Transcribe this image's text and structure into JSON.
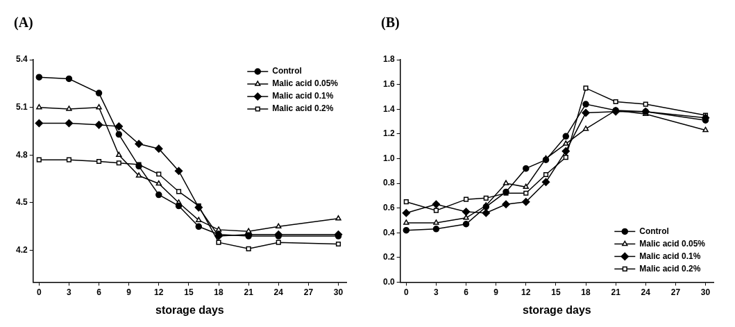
{
  "chart_data": [
    {
      "type": "line",
      "title": "(A)",
      "x_label": "storage days",
      "x": [
        0,
        3,
        6,
        8,
        10,
        12,
        14,
        16,
        18,
        21,
        24,
        30
      ],
      "xlim": [
        -0.6,
        30.8
      ],
      "xticks": [
        0,
        3,
        6,
        9,
        12,
        15,
        18,
        21,
        24,
        27,
        30
      ],
      "ylim": [
        4.0,
        5.4
      ],
      "yticks": [
        4.2,
        4.5,
        4.8,
        5.1,
        5.4
      ],
      "grid": false,
      "legend": "top-right",
      "series": [
        {
          "name": "Control",
          "color": "#000000",
          "marker": "circle",
          "values": [
            5.29,
            5.28,
            5.19,
            4.93,
            4.73,
            4.55,
            4.48,
            4.35,
            4.3,
            4.29,
            4.29,
            4.29
          ]
        },
        {
          "name": "Malic acid 0.05%",
          "color": "#000000",
          "marker": "triangle-open",
          "values": [
            5.1,
            5.09,
            5.1,
            4.8,
            4.67,
            4.62,
            4.5,
            4.39,
            4.33,
            4.32,
            4.35,
            4.4
          ]
        },
        {
          "name": "Malic acid 0.1%",
          "color": "#000000",
          "marker": "diamond",
          "values": [
            5.0,
            5.0,
            4.99,
            4.98,
            4.87,
            4.84,
            4.7,
            4.47,
            4.29,
            4.3,
            4.3,
            4.3
          ]
        },
        {
          "name": "Malic acid 0.2%",
          "color": "#000000",
          "marker": "square-open",
          "values": [
            4.77,
            4.77,
            4.76,
            4.75,
            4.74,
            4.68,
            4.57,
            4.48,
            4.25,
            4.21,
            4.25,
            4.24
          ]
        }
      ]
    },
    {
      "type": "line",
      "title": "(B)",
      "x_label": "storage days",
      "x": [
        0,
        3,
        6,
        8,
        10,
        12,
        14,
        16,
        18,
        21,
        24,
        30
      ],
      "xlim": [
        -0.6,
        30.8
      ],
      "xticks": [
        0,
        3,
        6,
        9,
        12,
        15,
        18,
        21,
        24,
        27,
        30
      ],
      "ylim": [
        0,
        1.8
      ],
      "yticks": [
        {
          "value": 0,
          "label": "0.0"
        },
        0.2,
        0.4,
        0.6,
        0.8,
        {
          "value": 1,
          "label": "1.0"
        },
        1.2,
        1.4,
        1.6,
        1.8
      ],
      "grid": false,
      "legend": "bottom-right",
      "series": [
        {
          "name": "Control",
          "color": "#000000",
          "marker": "circle",
          "values": [
            0.42,
            0.43,
            0.47,
            0.61,
            0.73,
            0.92,
            0.99,
            1.18,
            1.44,
            1.39,
            1.38,
            1.31
          ]
        },
        {
          "name": "Malic acid 0.05%",
          "color": "#000000",
          "marker": "triangle-open",
          "values": [
            0.48,
            0.48,
            0.52,
            0.62,
            0.8,
            0.77,
            1.0,
            1.12,
            1.24,
            1.39,
            1.36,
            1.23
          ]
        },
        {
          "name": "Malic acid 0.1%",
          "color": "#000000",
          "marker": "diamond",
          "values": [
            0.56,
            0.63,
            0.57,
            0.56,
            0.63,
            0.65,
            0.81,
            1.06,
            1.37,
            1.38,
            1.38,
            1.33
          ]
        },
        {
          "name": "Malic acid 0.2%",
          "color": "#000000",
          "marker": "square-open",
          "values": [
            0.65,
            0.58,
            0.67,
            0.68,
            0.72,
            0.72,
            0.87,
            1.01,
            1.57,
            1.46,
            1.44,
            1.35
          ]
        }
      ]
    }
  ]
}
